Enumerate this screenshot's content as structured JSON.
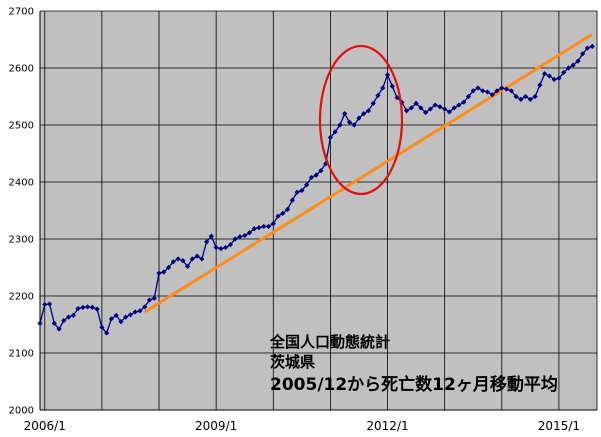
{
  "chart_data": {
    "type": "line",
    "title": "",
    "xlabel": "",
    "ylabel": "",
    "x_tick_labels": [
      "2006/1",
      "2009/1",
      "2012/1",
      "2015/1"
    ],
    "x_tick_positions_month_index": [
      0,
      36,
      72,
      108
    ],
    "y_tick_labels": [
      "2000",
      "2100",
      "2200",
      "2300",
      "2400",
      "2500",
      "2600",
      "2700"
    ],
    "ylim": [
      2000,
      2700
    ],
    "xlim_month_index": [
      -1,
      116
    ],
    "grid": true,
    "annotation_lines": [
      "全国人口動態統計",
      "茨城県",
      "2005/12から死亡数12ヶ月移動平均"
    ],
    "series": [
      {
        "style": "line-with-diamond-markers",
        "color": "#000080",
        "x_month_index": [
          -1,
          0,
          1,
          2,
          3,
          4,
          5,
          6,
          7,
          8,
          9,
          10,
          11,
          12,
          13,
          14,
          15,
          16,
          17,
          18,
          19,
          20,
          21,
          22,
          23,
          24,
          25,
          26,
          27,
          28,
          29,
          30,
          31,
          32,
          33,
          34,
          35,
          36,
          37,
          38,
          39,
          40,
          41,
          42,
          43,
          44,
          45,
          46,
          47,
          48,
          49,
          50,
          51,
          52,
          53,
          54,
          55,
          56,
          57,
          58,
          59,
          60,
          61,
          62,
          63,
          64,
          65,
          66,
          67,
          68,
          69,
          70,
          71,
          72,
          73,
          74,
          75,
          76,
          77,
          78,
          79,
          80,
          81,
          82,
          83,
          84,
          85,
          86,
          87,
          88,
          89,
          90,
          91,
          92,
          93,
          94,
          95,
          96,
          97,
          98,
          99,
          100,
          101,
          102,
          103,
          104,
          105,
          106,
          107,
          108,
          109,
          110,
          111,
          112,
          113,
          114,
          115
        ],
        "values": [
          2152,
          2185,
          2186,
          2152,
          2142,
          2157,
          2163,
          2166,
          2178,
          2180,
          2181,
          2180,
          2177,
          2145,
          2135,
          2160,
          2166,
          2155,
          2163,
          2167,
          2172,
          2174,
          2181,
          2193,
          2196,
          2240,
          2242,
          2250,
          2260,
          2265,
          2262,
          2252,
          2265,
          2270,
          2265,
          2295,
          2305,
          2285,
          2283,
          2285,
          2290,
          2300,
          2304,
          2306,
          2311,
          2318,
          2320,
          2322,
          2322,
          2327,
          2340,
          2345,
          2352,
          2368,
          2382,
          2385,
          2395,
          2408,
          2412,
          2420,
          2432,
          2478,
          2488,
          2500,
          2520,
          2505,
          2500,
          2512,
          2520,
          2525,
          2538,
          2552,
          2565,
          2588,
          2568,
          2548,
          2540,
          2525,
          2530,
          2538,
          2530,
          2522,
          2528,
          2535,
          2532,
          2528,
          2523,
          2530,
          2535,
          2540,
          2550,
          2560,
          2565,
          2560,
          2558,
          2553,
          2560,
          2565,
          2563,
          2560,
          2550,
          2545,
          2550,
          2545,
          2550,
          2570,
          2590,
          2586,
          2580,
          2582,
          2592,
          2600,
          2605,
          2612,
          2625,
          2635,
          2638
        ]
      },
      {
        "style": "trend-line",
        "color": "#ff8c1a",
        "x_month_index": [
          21,
          115
        ],
        "values": [
          2172,
          2659
        ]
      }
    ]
  }
}
